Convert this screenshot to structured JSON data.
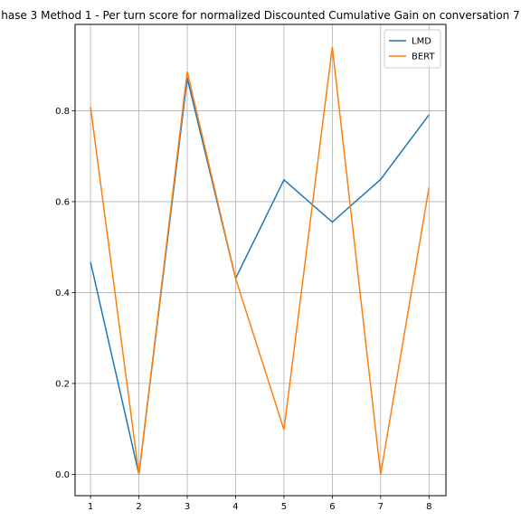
{
  "chart_data": {
    "type": "line",
    "title": "hase 3 Method 1 - Per turn score for normalized Discounted Cumulative Gain on conversation 7",
    "xlabel": "",
    "ylabel": "",
    "x": [
      1,
      2,
      3,
      4,
      5,
      6,
      7,
      8
    ],
    "xlim": [
      0.68,
      8.35
    ],
    "ylim": [
      -0.047,
      0.99
    ],
    "x_ticks": [
      "1",
      "2",
      "3",
      "4",
      "5",
      "6",
      "7",
      "8"
    ],
    "y_ticks": [
      "0.0",
      "0.2",
      "0.4",
      "0.6",
      "0.8"
    ],
    "grid": true,
    "legend_position": "top-right",
    "series": [
      {
        "name": "LMD",
        "color": "#1f77b4",
        "values": [
          0.467,
          0.0,
          0.872,
          0.431,
          0.648,
          0.555,
          0.649,
          0.791
        ]
      },
      {
        "name": "BERT",
        "color": "#ff7f0e",
        "values": [
          0.808,
          0.0,
          0.886,
          0.431,
          0.098,
          0.94,
          0.0,
          0.631
        ]
      }
    ]
  }
}
